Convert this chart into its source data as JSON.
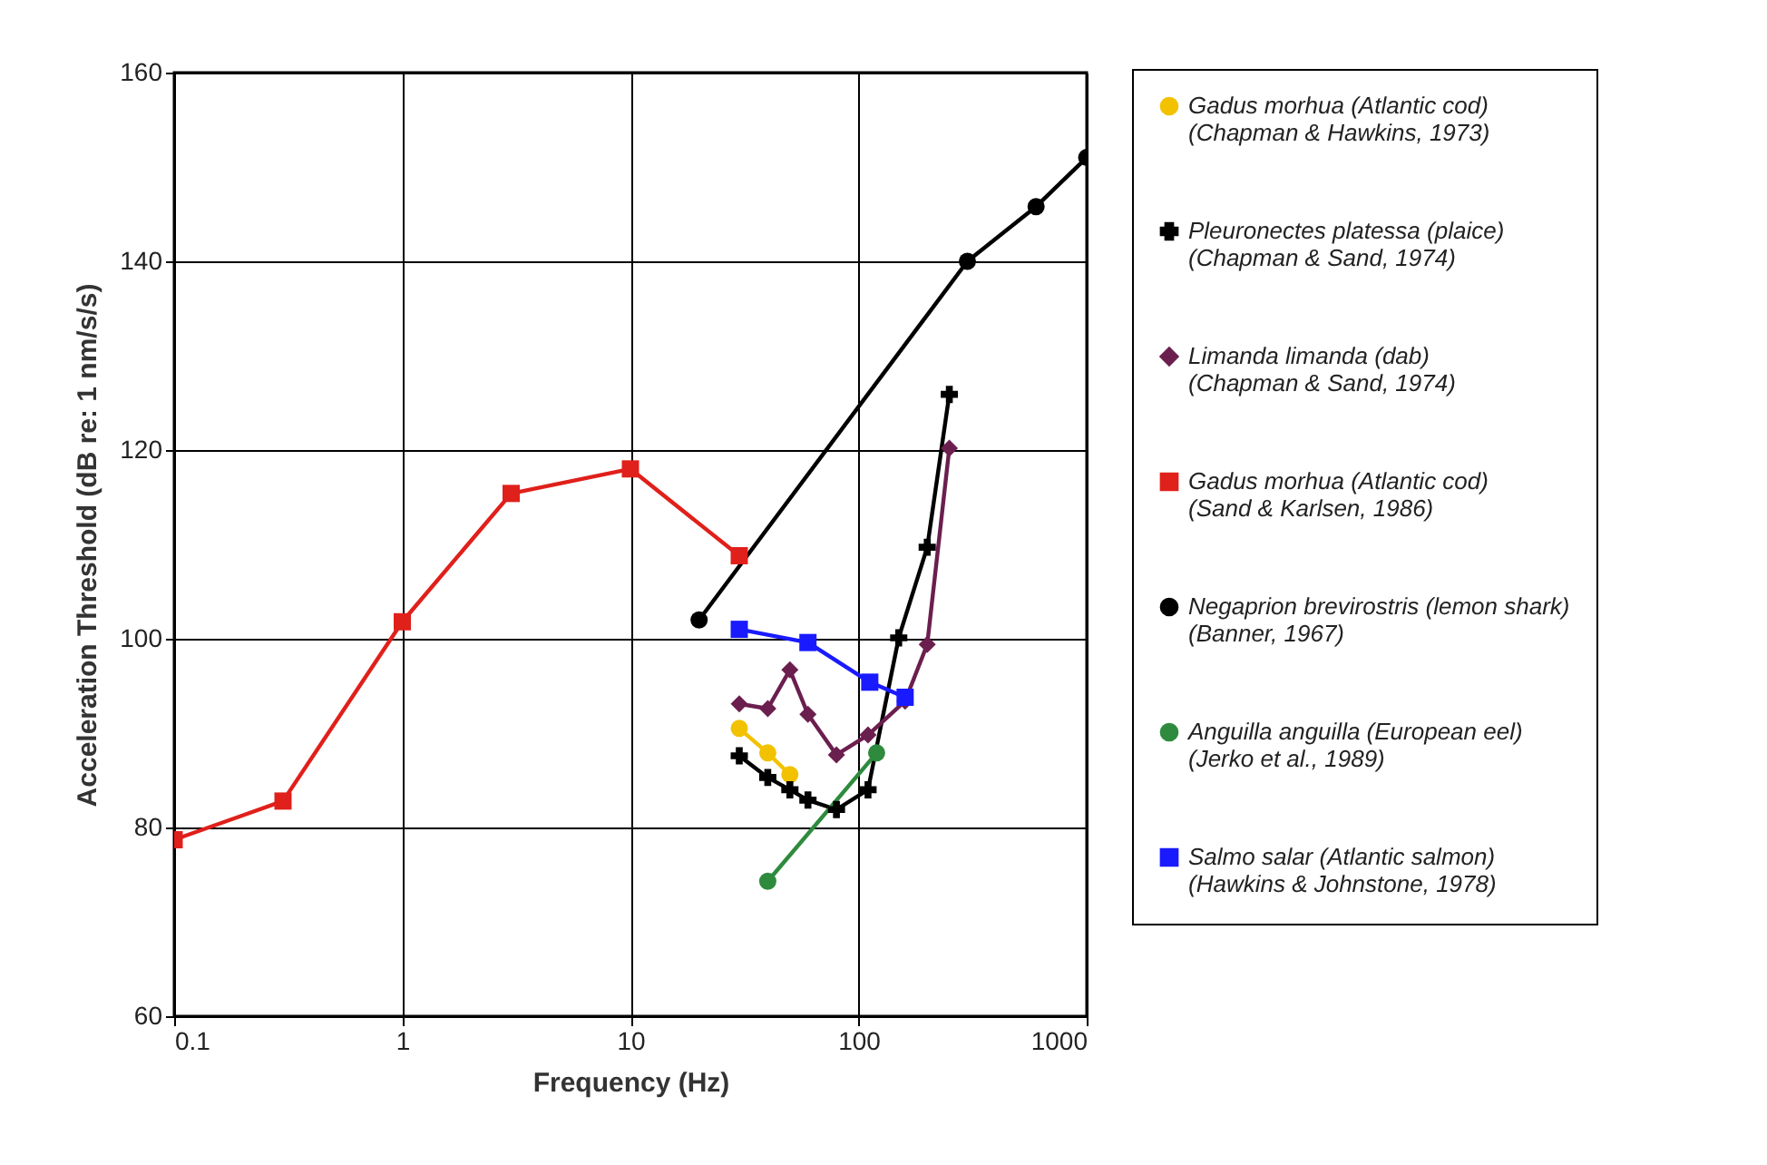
{
  "chart_data": {
    "type": "line",
    "xlabel": "Frequency (Hz)",
    "ylabel": "Acceleration Threshold (dB re: 1 nm/s/s)",
    "log": "x",
    "xlim": [
      0.1,
      1000
    ],
    "xticks": [
      0.1,
      1,
      10,
      100,
      1000
    ],
    "ylim": [
      60,
      160
    ],
    "yticks": [
      60,
      80,
      100,
      120,
      140,
      160
    ],
    "grid": true,
    "legend": "right",
    "series": [
      {
        "name": "Gadus morhua (Atlantic cod) (Chapman & Hawkins, 1973)",
        "color": "#f2c200",
        "marker": "circle",
        "x": [
          30,
          40,
          50
        ],
        "values": [
          90.5,
          87.9,
          85.6
        ]
      },
      {
        "name": "Pleuronectes platessa (plaice) (Chapman & Sand, 1974)",
        "color": "#000000",
        "marker": "cross",
        "x": [
          30,
          40,
          50,
          60,
          80,
          110,
          150,
          200,
          250
        ],
        "values": [
          87.6,
          85.3,
          84.0,
          82.9,
          81.9,
          84.0,
          100.1,
          109.7,
          125.9
        ]
      },
      {
        "name": "Limanda limanda  (dab) (Chapman & Sand, 1974)",
        "color": "#6b1f4f",
        "marker": "diamond",
        "x": [
          30,
          40,
          50,
          60,
          80,
          110,
          160,
          200,
          250
        ],
        "values": [
          93.1,
          92.6,
          96.7,
          92.0,
          87.7,
          89.8,
          93.4,
          99.4,
          120.2
        ]
      },
      {
        "name": "Gadus morhua (Atlantic cod) (Sand & Karlsen, 1986)",
        "color": "#e0201b",
        "marker": "square",
        "x": [
          0.1,
          0.3,
          1,
          3,
          10,
          30
        ],
        "values": [
          78.7,
          82.8,
          101.8,
          115.4,
          118.0,
          108.8
        ]
      },
      {
        "name": "Negaprion brevirostris (lemon shark) (Banner, 1967)",
        "color": "#000000",
        "marker": "circle",
        "x": [
          20,
          300,
          600,
          1000
        ],
        "values": [
          102.0,
          140.0,
          145.8,
          151.0
        ]
      },
      {
        "name": "Anguilla anguilla (European eel) (Jerko et al., 1989)",
        "color": "#2e8b3e",
        "marker": "circle",
        "x": [
          40,
          120
        ],
        "values": [
          74.3,
          87.9
        ]
      },
      {
        "name": "Salmo salar (Atlantic salmon) (Hawkins & Johnstone, 1978)",
        "color": "#1a1aff",
        "marker": "square",
        "x": [
          30,
          60,
          112,
          160
        ],
        "values": [
          101.0,
          99.6,
          95.4,
          93.8
        ]
      }
    ]
  }
}
